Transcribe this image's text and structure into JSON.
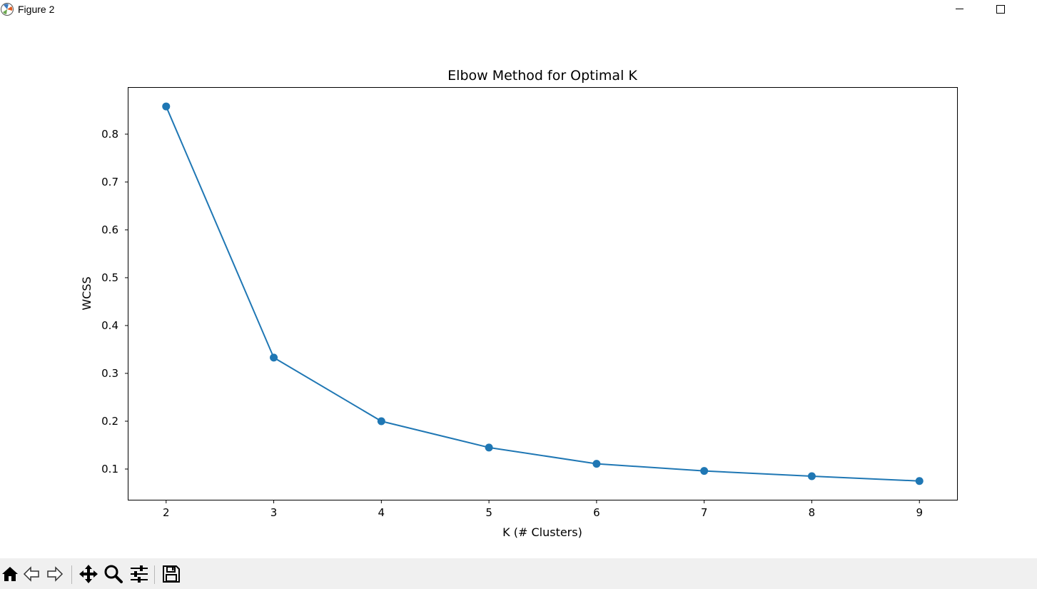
{
  "window": {
    "title": "Figure 2",
    "minimize_icon": "minimize-icon",
    "maximize_icon": "maximize-icon"
  },
  "toolbar": {
    "items": [
      "home-icon",
      "back-arrow-icon",
      "forward-arrow-icon",
      "pan-icon",
      "zoom-icon",
      "configure-subplots-icon",
      "save-icon"
    ]
  },
  "colors": {
    "series": "#1f77b4",
    "toolbar_bg": "#f0f0f0"
  },
  "chart_data": {
    "type": "line",
    "title": "Elbow Method for Optimal K",
    "xlabel": "K (# Clusters)",
    "ylabel": "WCSS",
    "x": [
      2,
      3,
      4,
      5,
      6,
      7,
      8,
      9
    ],
    "series": [
      {
        "name": "WCSS",
        "marker": "circle",
        "values": [
          0.858,
          0.333,
          0.2,
          0.145,
          0.111,
          0.096,
          0.085,
          0.075
        ]
      }
    ],
    "xticks": [
      "2",
      "3",
      "4",
      "5",
      "6",
      "7",
      "8",
      "9"
    ],
    "yticks": [
      "0.1",
      "0.2",
      "0.3",
      "0.4",
      "0.5",
      "0.6",
      "0.7",
      "0.8"
    ],
    "xlim": [
      1.65,
      9.35
    ],
    "ylim": [
      0.0358,
      0.8969
    ],
    "grid": false,
    "legend": "none"
  }
}
